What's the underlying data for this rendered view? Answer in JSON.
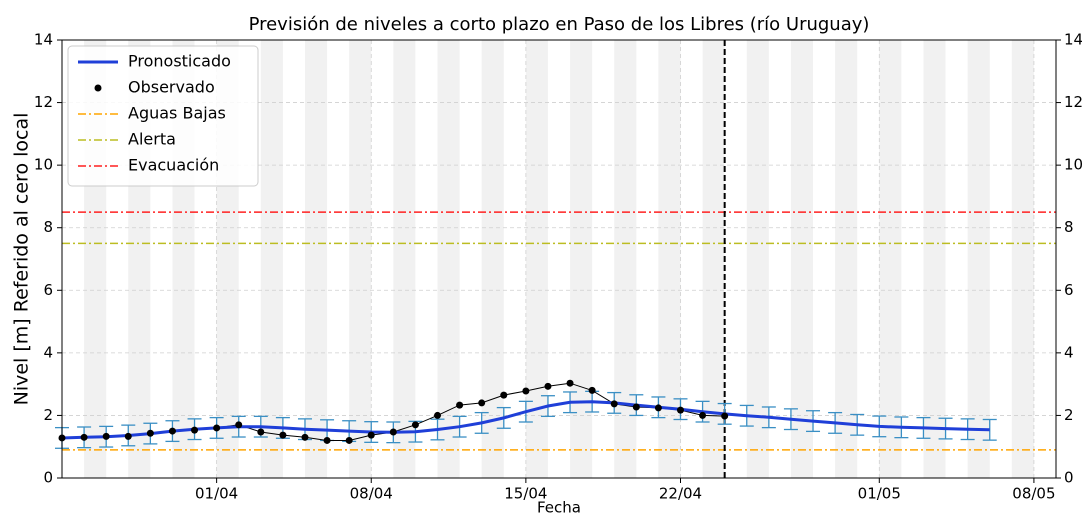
{
  "chart_data": {
    "type": "line",
    "title": "Previsión de niveles a corto plazo en Paso de los Libres (río Uruguay)",
    "xlabel": "Fecha",
    "ylabel": "Nivel [m] Referido al cero local",
    "x": [
      "25/03",
      "26/03",
      "27/03",
      "28/03",
      "29/03",
      "30/03",
      "31/03",
      "01/04",
      "02/04",
      "03/04",
      "04/04",
      "05/04",
      "06/04",
      "07/04",
      "08/04",
      "09/04",
      "10/04",
      "11/04",
      "12/04",
      "13/04",
      "14/04",
      "15/04",
      "16/04",
      "17/04",
      "18/04",
      "19/04",
      "20/04",
      "21/04",
      "22/04",
      "23/04",
      "24/04",
      "25/04",
      "26/04",
      "27/04",
      "28/04",
      "29/04",
      "30/04",
      "01/05",
      "02/05",
      "03/05",
      "04/05",
      "05/05",
      "06/05"
    ],
    "series": [
      {
        "name": "Pronosticado",
        "color": "#1f3fd8",
        "error": 0.33,
        "error_color": "#3a8fc4",
        "values": [
          1.28,
          1.3,
          1.32,
          1.36,
          1.42,
          1.5,
          1.56,
          1.6,
          1.64,
          1.64,
          1.6,
          1.56,
          1.53,
          1.5,
          1.47,
          1.46,
          1.48,
          1.55,
          1.64,
          1.76,
          1.92,
          2.12,
          2.3,
          2.42,
          2.44,
          2.4,
          2.33,
          2.26,
          2.2,
          2.12,
          2.05,
          1.99,
          1.94,
          1.88,
          1.82,
          1.76,
          1.7,
          1.65,
          1.62,
          1.6,
          1.58,
          1.56,
          1.54
        ]
      },
      {
        "name": "Observado",
        "color": "#000000",
        "values": [
          1.28,
          1.3,
          1.33,
          1.33,
          1.43,
          1.5,
          1.53,
          1.6,
          1.7,
          1.47,
          1.37,
          1.3,
          1.2,
          1.2,
          1.37,
          1.47,
          1.7,
          2.0,
          2.33,
          2.4,
          2.65,
          2.78,
          2.93,
          3.03,
          2.8,
          2.37,
          2.27,
          2.24,
          2.17,
          2.0,
          1.98,
          null,
          null,
          null,
          null,
          null,
          null,
          null,
          null,
          null,
          null,
          null,
          null
        ]
      }
    ],
    "thresholds": [
      {
        "name": "Aguas Bajas",
        "color": "#ffa500",
        "value": 0.9
      },
      {
        "name": "Alerta",
        "color": "#bcbd22",
        "value": 7.5
      },
      {
        "name": "Evacuación",
        "color": "#ff2020",
        "value": 8.5
      }
    ],
    "forecast_start": "24/04",
    "xlim": [
      "25/03",
      "09/05"
    ],
    "xticks": [
      "01/04",
      "08/04",
      "15/04",
      "22/04",
      "01/05",
      "08/05"
    ],
    "ylim": [
      0,
      14
    ],
    "yticks": [
      0,
      2,
      4,
      6,
      8,
      10,
      12,
      14
    ],
    "y2lim": [
      0,
      14
    ],
    "y2ticks": [
      0,
      2,
      4,
      6,
      8,
      10,
      12,
      14
    ],
    "grid": true,
    "legend": "upper left"
  }
}
